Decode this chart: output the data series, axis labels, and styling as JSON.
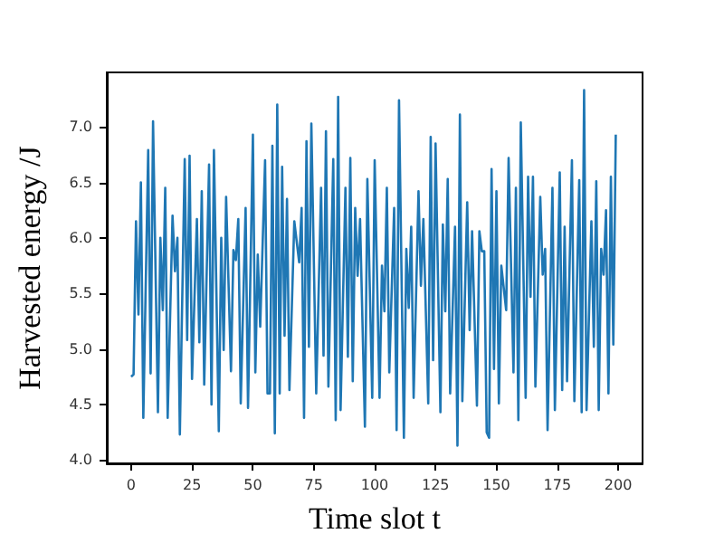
{
  "chart_data": {
    "type": "line",
    "xlabel": "Time slot t",
    "ylabel": "Harvested energy /J",
    "series": [
      {
        "color": "#1f77b4",
        "x": [
          0,
          1,
          2,
          3,
          4,
          5,
          7,
          8,
          9,
          11,
          12,
          13,
          14,
          15,
          17,
          18,
          19,
          20,
          22,
          23,
          24,
          25,
          27,
          28,
          29,
          30,
          32,
          33,
          34,
          36,
          37,
          38,
          39,
          41,
          42,
          43,
          44,
          45,
          47,
          48,
          50,
          51,
          52,
          53,
          55,
          56,
          57,
          58,
          59,
          60,
          61,
          62,
          63,
          64,
          65,
          67,
          69,
          70,
          71,
          72,
          73,
          74,
          76,
          78,
          79,
          80,
          81,
          83,
          84,
          85,
          86,
          88,
          89,
          90,
          91,
          92,
          93,
          94,
          96,
          97,
          99,
          100,
          102,
          103,
          104,
          105,
          106,
          108,
          109,
          110,
          112,
          113,
          114,
          115,
          116,
          118,
          119,
          120,
          122,
          123,
          124,
          125,
          127,
          128,
          129,
          130,
          131,
          133,
          134,
          135,
          136,
          138,
          139,
          140,
          142,
          143,
          144,
          145,
          146,
          147,
          148,
          149,
          150,
          151,
          152,
          154,
          155,
          157,
          158,
          159,
          160,
          162,
          163,
          164,
          165,
          166,
          168,
          169,
          170,
          171,
          173,
          174,
          176,
          177,
          178,
          179,
          181,
          182,
          184,
          185,
          186,
          187,
          189,
          190,
          191,
          192,
          193,
          194,
          195,
          196,
          197,
          198,
          199
        ],
        "values": [
          4.75,
          4.77,
          6.15,
          5.31,
          6.5,
          4.38,
          6.79,
          4.78,
          7.05,
          4.43,
          6.0,
          5.35,
          6.45,
          4.38,
          6.2,
          5.7,
          6.0,
          4.23,
          6.71,
          5.08,
          6.74,
          4.73,
          6.17,
          5.06,
          6.42,
          4.68,
          6.66,
          4.5,
          6.79,
          4.26,
          6.0,
          4.99,
          6.37,
          4.8,
          5.89,
          5.8,
          6.17,
          4.51,
          6.27,
          4.47,
          6.93,
          4.79,
          5.85,
          5.2,
          6.7,
          4.6,
          4.6,
          6.83,
          4.24,
          7.2,
          4.6,
          6.64,
          5.12,
          6.35,
          4.63,
          6.15,
          5.78,
          6.27,
          4.38,
          6.87,
          5.02,
          7.03,
          4.6,
          6.45,
          4.94,
          6.96,
          4.66,
          6.71,
          4.36,
          7.27,
          4.45,
          6.45,
          4.93,
          6.72,
          4.71,
          6.27,
          5.66,
          6.17,
          4.3,
          6.53,
          4.56,
          6.7,
          4.56,
          5.75,
          5.34,
          6.45,
          4.79,
          6.27,
          4.27,
          7.24,
          4.2,
          5.9,
          5.37,
          6.1,
          4.56,
          6.42,
          5.57,
          6.17,
          4.51,
          6.91,
          4.9,
          6.85,
          4.43,
          6.12,
          5.34,
          6.53,
          4.6,
          6.1,
          4.13,
          7.11,
          4.53,
          6.32,
          5.17,
          6.06,
          4.49,
          6.06,
          5.88,
          5.88,
          4.25,
          4.2,
          6.62,
          4.82,
          6.42,
          4.51,
          5.75,
          5.35,
          6.72,
          4.79,
          6.45,
          4.36,
          7.04,
          4.56,
          6.55,
          5.47,
          6.55,
          4.66,
          6.37,
          5.67,
          5.9,
          4.27,
          6.45,
          4.45,
          6.59,
          4.63,
          6.1,
          4.71,
          6.7,
          4.53,
          6.52,
          4.43,
          7.33,
          4.45,
          6.15,
          5.02,
          6.51,
          4.45,
          5.9,
          5.67,
          6.25,
          4.6,
          6.55,
          5.04,
          6.93
        ]
      }
    ],
    "xlim": [
      -10,
      210
    ],
    "xticks": [
      0,
      25,
      50,
      75,
      100,
      125,
      150,
      175,
      200
    ],
    "ylim": [
      3.97,
      7.49
    ],
    "yticks": [
      {
        "value": 4,
        "label": "4.0"
      },
      {
        "value": 4.5,
        "label": "4.5"
      },
      {
        "value": 5,
        "label": "5.0"
      },
      {
        "value": 5.5,
        "label": "5.5"
      },
      {
        "value": 6,
        "label": "6.0"
      },
      {
        "value": 6.5,
        "label": "6.5"
      },
      {
        "value": 7,
        "label": "7.0"
      }
    ],
    "grid": false,
    "marker": "none",
    "line_style": "solid"
  }
}
